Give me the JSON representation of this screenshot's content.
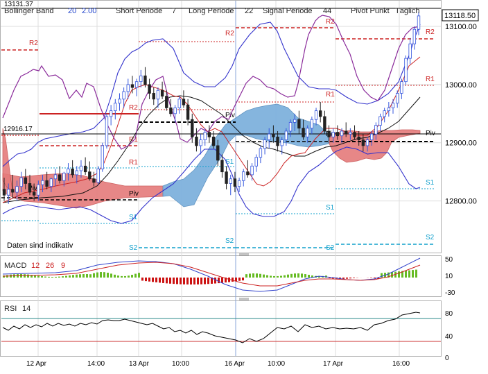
{
  "header": {
    "top_left_price": "13131.37",
    "bb_label": "Bollinger Band",
    "bb_param1": "20",
    "bb_param2": "2.00",
    "short_label": "Short Periode",
    "short_val": "7",
    "long_label": "Long Periode",
    "long_val": "22",
    "signal_label": "Signal Periode",
    "signal_val": "44",
    "pivot_label": "Pivot Punkt",
    "pivot_mode": "Täglich"
  },
  "current_price_label": "13118.50",
  "left_price_label": "12916.17",
  "disclaimer": "Daten sind indikativ",
  "colors": {
    "up_candle": "#3355dd",
    "down_candle": "#222222",
    "bb": "#3333cc",
    "macd_line": "#3344cc",
    "signal_line": "#cc2222",
    "hist_pos": "#66bb22",
    "hist_neg": "#cc1111",
    "cloud_red": "#e57b7b",
    "cloud_blue": "#7fb2dd",
    "pivot_r": "#cc2222",
    "pivot_s": "#11a0cc",
    "rsi_high": "#2a8a88",
    "rsi_low": "#cc3333"
  },
  "pivot_labels": {
    "r2": "R2",
    "r1": "R1",
    "piv": "Piv",
    "s1": "S1",
    "s2": "S2"
  },
  "macd": {
    "label": "MACD",
    "p1": "12",
    "p2": "26",
    "p3": "9",
    "ticks": [
      "50",
      "10",
      "-30"
    ]
  },
  "rsi": {
    "label": "RSI",
    "period": "14",
    "ticks": [
      "80",
      "40",
      "0"
    ]
  },
  "x_axis": [
    "12 Apr",
    "14:00",
    "13 Apr",
    "10:00",
    "16 Apr",
    "10:00",
    "17 Apr",
    "16:00"
  ],
  "chart_data": {
    "type": "candlestick",
    "y_axis_ticks": [
      12800,
      12900,
      13000,
      13100
    ],
    "ylim": [
      12730,
      13170
    ],
    "last_price": 13118.5,
    "candles_ohlc": [
      [
        12820,
        12840,
        12800,
        12810
      ],
      [
        12810,
        12830,
        12795,
        12820
      ],
      [
        12820,
        12845,
        12805,
        12815
      ],
      [
        12815,
        12835,
        12800,
        12825
      ],
      [
        12825,
        12850,
        12815,
        12840
      ],
      [
        12840,
        12855,
        12820,
        12830
      ],
      [
        12830,
        12845,
        12810,
        12815
      ],
      [
        12815,
        12830,
        12800,
        12810
      ],
      [
        12810,
        12835,
        12800,
        12828
      ],
      [
        12828,
        12845,
        12815,
        12835
      ],
      [
        12835,
        12850,
        12820,
        12825
      ],
      [
        12825,
        12840,
        12815,
        12838
      ],
      [
        12838,
        12855,
        12825,
        12845
      ],
      [
        12845,
        12860,
        12830,
        12835
      ],
      [
        12835,
        12850,
        12825,
        12848
      ],
      [
        12848,
        12865,
        12835,
        12855
      ],
      [
        12855,
        12870,
        12840,
        12845
      ],
      [
        12845,
        12860,
        12830,
        12852
      ],
      [
        12852,
        12870,
        12840,
        12860
      ],
      [
        12860,
        12875,
        12845,
        12850
      ],
      [
        12850,
        12868,
        12835,
        12838
      ],
      [
        12838,
        12850,
        12825,
        12832
      ],
      [
        12832,
        12860,
        12828,
        12855
      ],
      [
        12855,
        12900,
        12850,
        12895
      ],
      [
        12895,
        12950,
        12890,
        12945
      ],
      [
        12945,
        12965,
        12930,
        12955
      ],
      [
        12955,
        12975,
        12940,
        12968
      ],
      [
        12968,
        12985,
        12955,
        12975
      ],
      [
        12975,
        12995,
        12960,
        12988
      ],
      [
        12988,
        13010,
        12975,
        13000
      ],
      [
        13000,
        13015,
        12985,
        12995
      ],
      [
        12995,
        13010,
        12980,
        13005
      ],
      [
        13005,
        13025,
        12995,
        13015
      ],
      [
        13015,
        13030,
        12995,
        13000
      ],
      [
        13000,
        13010,
        12975,
        12985
      ],
      [
        12985,
        12995,
        12965,
        12975
      ],
      [
        12975,
        12995,
        12960,
        12990
      ],
      [
        12990,
        13005,
        12975,
        12980
      ],
      [
        12980,
        12990,
        12955,
        12960
      ],
      [
        12960,
        12975,
        12945,
        12950
      ],
      [
        12950,
        12965,
        12935,
        12960
      ],
      [
        12960,
        12980,
        12950,
        12975
      ],
      [
        12975,
        12990,
        12960,
        12965
      ],
      [
        12965,
        12975,
        12930,
        12940
      ],
      [
        12940,
        12950,
        12900,
        12910
      ],
      [
        12910,
        12925,
        12885,
        12895
      ],
      [
        12895,
        12915,
        12880,
        12905
      ],
      [
        12905,
        12925,
        12895,
        12918
      ],
      [
        12918,
        12930,
        12900,
        12910
      ],
      [
        12910,
        12920,
        12890,
        12895
      ],
      [
        12895,
        12905,
        12860,
        12870
      ],
      [
        12870,
        12880,
        12840,
        12850
      ],
      [
        12850,
        12860,
        12820,
        12830
      ],
      [
        12830,
        12845,
        12810,
        12838
      ],
      [
        12838,
        12850,
        12815,
        12825
      ],
      [
        12825,
        12840,
        12815,
        12835
      ],
      [
        12835,
        12855,
        12825,
        12850
      ],
      [
        12850,
        12870,
        12840,
        12845
      ],
      [
        12845,
        12865,
        12835,
        12860
      ],
      [
        12860,
        12880,
        12850,
        12875
      ],
      [
        12875,
        12895,
        12865,
        12890
      ],
      [
        12890,
        12910,
        12880,
        12905
      ],
      [
        12905,
        12925,
        12890,
        12915
      ],
      [
        12915,
        12930,
        12900,
        12910
      ],
      [
        12910,
        12920,
        12885,
        12895
      ],
      [
        12895,
        12910,
        12880,
        12905
      ],
      [
        12905,
        12925,
        12895,
        12920
      ],
      [
        12920,
        12940,
        12910,
        12935
      ],
      [
        12935,
        12950,
        12920,
        12940
      ],
      [
        12940,
        12955,
        12915,
        12925
      ],
      [
        12925,
        12940,
        12905,
        12910
      ],
      [
        12910,
        12930,
        12900,
        12925
      ],
      [
        12925,
        12945,
        12915,
        12940
      ],
      [
        12940,
        12960,
        12930,
        12955
      ],
      [
        12955,
        12970,
        12935,
        12945
      ],
      [
        12945,
        12955,
        12915,
        12920
      ],
      [
        12920,
        12930,
        12900,
        12910
      ],
      [
        12910,
        12925,
        12900,
        12918
      ],
      [
        12918,
        12930,
        12905,
        12912
      ],
      [
        12912,
        12925,
        12900,
        12920
      ],
      [
        12920,
        12935,
        12910,
        12915
      ],
      [
        12915,
        12925,
        12905,
        12918
      ],
      [
        12918,
        12930,
        12905,
        12910
      ],
      [
        12910,
        12920,
        12895,
        12905
      ],
      [
        12905,
        12915,
        12885,
        12895
      ],
      [
        12895,
        12910,
        12885,
        12905
      ],
      [
        12905,
        12920,
        12895,
        12915
      ],
      [
        12915,
        12935,
        12905,
        12930
      ],
      [
        12930,
        12950,
        12920,
        12945
      ],
      [
        12945,
        12960,
        12935,
        12955
      ],
      [
        12955,
        12970,
        12945,
        12960
      ],
      [
        12960,
        12975,
        12950,
        12968
      ],
      [
        12968,
        12990,
        12960,
        12985
      ],
      [
        12985,
        13010,
        12975,
        13005
      ],
      [
        13005,
        13050,
        13000,
        13045
      ],
      [
        13045,
        13080,
        13035,
        13070
      ],
      [
        13070,
        13100,
        13060,
        13095
      ],
      [
        13095,
        13125,
        13085,
        13118
      ]
    ]
  }
}
